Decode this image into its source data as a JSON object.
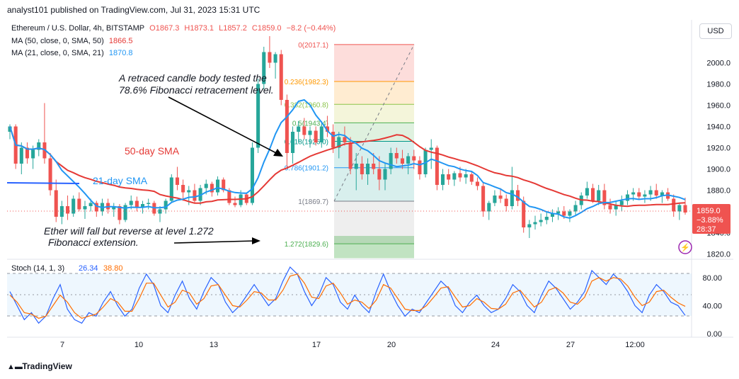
{
  "header": {
    "published": "analyst101 published on TradingView.com, Jul 31, 2023 15:31 UTC",
    "currency_button": "USD",
    "brand": "TradingView"
  },
  "legend": {
    "symbol": "Ethereum / U.S. Dollar, 4h, BITSTAMP",
    "open": "O1867.3",
    "high": "H1873.1",
    "low": "L1857.2",
    "close": "C1859.0",
    "change": "−8.2 (−0.44%)",
    "ma50_label": "MA (50, close, 0, SMA, 50)",
    "ma50_value": "1866.5",
    "ma21_label": "MA (21, close, 0, SMA, 21)",
    "ma21_value": "1870.8",
    "stoch_label": "Stoch (14, 1, 3)",
    "stoch_k": "26.34",
    "stoch_d": "38.80"
  },
  "price_tag": {
    "price": "1859.0",
    "pct": "−3.88%",
    "countdown": "28:37"
  },
  "annotations": {
    "retrace_line1": "A retraced candle body tested the",
    "retrace_line2": "78.6% Fibonacci retracement level.",
    "sma50": "50-day SMA",
    "sma21": "21-day SMA",
    "fall_line1": "Ether will fall but reverse at level 1.272",
    "fall_line2": "Fibonacci extension."
  },
  "colors": {
    "up": "#26a69a",
    "down": "#ef5350",
    "ma50": "#e53935",
    "ma21": "#2196f3",
    "stoch_k": "#2962ff",
    "stoch_d": "#ff6d00"
  },
  "chart_data": [
    {
      "type": "candlestick",
      "title": "Ethereum / U.S. Dollar, 4h, BITSTAMP",
      "x_ticks": [
        "7",
        "10",
        "13",
        "17",
        "20",
        "24",
        "27",
        "12:00"
      ],
      "y_ticks": [
        "2000.0",
        "1980.0",
        "1960.0",
        "1940.0",
        "1920.0",
        "1900.0",
        "1880.0",
        "1840.0",
        "1820.0"
      ],
      "ylim": [
        1815,
        2035
      ],
      "ohlc": [
        [
          1935,
          1942,
          1928,
          1940
        ],
        [
          1940,
          1942,
          1900,
          1905
        ],
        [
          1905,
          1925,
          1895,
          1920
        ],
        [
          1920,
          1925,
          1905,
          1910
        ],
        [
          1910,
          1922,
          1900,
          1918
        ],
        [
          1918,
          1928,
          1912,
          1925
        ],
        [
          1925,
          1962,
          1905,
          1910
        ],
        [
          1910,
          1915,
          1875,
          1880
        ],
        [
          1880,
          1890,
          1850,
          1855
        ],
        [
          1855,
          1870,
          1848,
          1865
        ],
        [
          1865,
          1875,
          1852,
          1858
        ],
        [
          1858,
          1875,
          1855,
          1872
        ],
        [
          1872,
          1878,
          1860,
          1862
        ],
        [
          1862,
          1870,
          1853,
          1865
        ],
        [
          1865,
          1872,
          1860,
          1868
        ],
        [
          1868,
          1870,
          1855,
          1860
        ],
        [
          1860,
          1872,
          1856,
          1868
        ],
        [
          1868,
          1872,
          1858,
          1862
        ],
        [
          1862,
          1868,
          1855,
          1865
        ],
        [
          1865,
          1867,
          1848,
          1852
        ],
        [
          1852,
          1868,
          1850,
          1866
        ],
        [
          1866,
          1875,
          1862,
          1870
        ],
        [
          1870,
          1874,
          1860,
          1864
        ],
        [
          1864,
          1870,
          1858,
          1867
        ],
        [
          1867,
          1872,
          1862,
          1868
        ],
        [
          1868,
          1870,
          1856,
          1858
        ],
        [
          1858,
          1865,
          1850,
          1862
        ],
        [
          1862,
          1872,
          1858,
          1870
        ],
        [
          1870,
          1895,
          1868,
          1892
        ],
        [
          1892,
          1902,
          1880,
          1885
        ],
        [
          1885,
          1890,
          1870,
          1878
        ],
        [
          1878,
          1884,
          1866,
          1880
        ],
        [
          1880,
          1886,
          1868,
          1870
        ],
        [
          1870,
          1885,
          1866,
          1882
        ],
        [
          1882,
          1890,
          1876,
          1886
        ],
        [
          1886,
          1888,
          1874,
          1878
        ],
        [
          1878,
          1893,
          1875,
          1890
        ],
        [
          1890,
          1892,
          1878,
          1880
        ],
        [
          1880,
          1882,
          1866,
          1868
        ],
        [
          1868,
          1874,
          1864,
          1866
        ],
        [
          1866,
          1880,
          1864,
          1876
        ],
        [
          1876,
          1878,
          1866,
          1868
        ],
        [
          1868,
          1925,
          1866,
          1920
        ],
        [
          1920,
          1985,
          1915,
          1980
        ],
        [
          1980,
          2015,
          1975,
          2010
        ],
        [
          2010,
          2025,
          1995,
          2000
        ],
        [
          2000,
          2010,
          1985,
          2008
        ],
        [
          2008,
          2012,
          1960,
          1965
        ],
        [
          1965,
          1970,
          1900,
          1915
        ],
        [
          1915,
          1940,
          1905,
          1935
        ],
        [
          1935,
          1945,
          1925,
          1940
        ],
        [
          1940,
          1948,
          1928,
          1932
        ],
        [
          1932,
          1940,
          1920,
          1936
        ],
        [
          1936,
          1940,
          1922,
          1925
        ],
        [
          1925,
          1945,
          1920,
          1940
        ],
        [
          1940,
          1950,
          1930,
          1935
        ],
        [
          1935,
          1942,
          1915,
          1920
        ],
        [
          1920,
          1935,
          1910,
          1930
        ],
        [
          1930,
          1940,
          1922,
          1925
        ],
        [
          1925,
          1930,
          1895,
          1900
        ],
        [
          1900,
          1915,
          1880,
          1905
        ],
        [
          1905,
          1912,
          1890,
          1895
        ],
        [
          1895,
          1910,
          1885,
          1905
        ],
        [
          1905,
          1915,
          1895,
          1900
        ],
        [
          1900,
          1912,
          1880,
          1890
        ],
        [
          1890,
          1905,
          1880,
          1900
        ],
        [
          1900,
          1920,
          1895,
          1915
        ],
        [
          1915,
          1920,
          1905,
          1910
        ],
        [
          1910,
          1918,
          1900,
          1905
        ],
        [
          1905,
          1915,
          1895,
          1912
        ],
        [
          1912,
          1918,
          1900,
          1908
        ],
        [
          1908,
          1912,
          1890,
          1895
        ],
        [
          1895,
          1920,
          1892,
          1918
        ],
        [
          1918,
          1928,
          1900,
          1920
        ],
        [
          1920,
          1922,
          1880,
          1885
        ],
        [
          1885,
          1900,
          1880,
          1895
        ],
        [
          1895,
          1900,
          1885,
          1890
        ],
        [
          1890,
          1898,
          1884,
          1896
        ],
        [
          1896,
          1902,
          1888,
          1892
        ],
        [
          1892,
          1900,
          1886,
          1895
        ],
        [
          1895,
          1898,
          1885,
          1888
        ],
        [
          1888,
          1892,
          1880,
          1884
        ],
        [
          1884,
          1888,
          1855,
          1860
        ],
        [
          1860,
          1870,
          1852,
          1868
        ],
        [
          1868,
          1880,
          1865,
          1875
        ],
        [
          1875,
          1882,
          1868,
          1872
        ],
        [
          1872,
          1876,
          1860,
          1865
        ],
        [
          1865,
          1902,
          1862,
          1880
        ],
        [
          1880,
          1885,
          1865,
          1870
        ],
        [
          1870,
          1874,
          1840,
          1845
        ],
        [
          1845,
          1852,
          1835,
          1848
        ],
        [
          1848,
          1856,
          1843,
          1850
        ],
        [
          1850,
          1858,
          1846,
          1852
        ],
        [
          1852,
          1860,
          1848,
          1855
        ],
        [
          1855,
          1862,
          1850,
          1858
        ],
        [
          1858,
          1864,
          1852,
          1860
        ],
        [
          1860,
          1865,
          1853,
          1856
        ],
        [
          1856,
          1862,
          1850,
          1860
        ],
        [
          1860,
          1870,
          1856,
          1866
        ],
        [
          1866,
          1878,
          1862,
          1875
        ],
        [
          1875,
          1888,
          1872,
          1882
        ],
        [
          1882,
          1886,
          1868,
          1870
        ],
        [
          1870,
          1885,
          1866,
          1880
        ],
        [
          1880,
          1886,
          1862,
          1866
        ],
        [
          1866,
          1872,
          1858,
          1862
        ],
        [
          1862,
          1870,
          1856,
          1866
        ],
        [
          1866,
          1875,
          1860,
          1870
        ],
        [
          1870,
          1880,
          1866,
          1876
        ],
        [
          1876,
          1882,
          1870,
          1878
        ],
        [
          1878,
          1882,
          1872,
          1874
        ],
        [
          1874,
          1880,
          1868,
          1876
        ],
        [
          1876,
          1884,
          1870,
          1880
        ],
        [
          1880,
          1886,
          1872,
          1875
        ],
        [
          1875,
          1880,
          1868,
          1878
        ],
        [
          1878,
          1882,
          1870,
          1872
        ],
        [
          1872,
          1876,
          1855,
          1860
        ],
        [
          1860,
          1868,
          1852,
          1866
        ],
        [
          1866,
          1873,
          1857,
          1859
        ]
      ]
    },
    {
      "type": "line",
      "title": "Fibonacci retracement",
      "levels": [
        {
          "ratio": "0",
          "price": 2017.1
        },
        {
          "ratio": "0.236",
          "price": 1982.3
        },
        {
          "ratio": "0.382",
          "price": 1960.8
        },
        {
          "ratio": "0.5",
          "price": 1943.4
        },
        {
          "ratio": "0.618",
          "price": 1926.0
        },
        {
          "ratio": "0.786",
          "price": 1901.2
        },
        {
          "ratio": "1",
          "price": 1869.7
        },
        {
          "ratio": "1.272",
          "price": 1829.6
        }
      ]
    },
    {
      "type": "line",
      "title": "Stoch (14, 1, 3)",
      "y_ticks": [
        "80.00",
        "40.00",
        "0.00"
      ],
      "ylim": [
        -5,
        100
      ],
      "series": [
        {
          "name": "26.34",
          "values": [
            60,
            40,
            20,
            30,
            15,
            25,
            50,
            70,
            35,
            20,
            15,
            30,
            25,
            45,
            60,
            40,
            25,
            35,
            65,
            85,
            70,
            40,
            30,
            55,
            75,
            50,
            35,
            60,
            80,
            70,
            45,
            30,
            40,
            55,
            70,
            55,
            40,
            50,
            75,
            95,
            85,
            60,
            40,
            55,
            80,
            70,
            45,
            35,
            55,
            40,
            30,
            60,
            85,
            60,
            40,
            25,
            35,
            30,
            45,
            60,
            75,
            65,
            40,
            30,
            45,
            55,
            40,
            30,
            35,
            50,
            70,
            60,
            40,
            30,
            55,
            75,
            65,
            50,
            35,
            45,
            60,
            90,
            80,
            70,
            85,
            75,
            60,
            40,
            30,
            55,
            70,
            60,
            45,
            40,
            26
          ]
        },
        {
          "name": "38.80",
          "values": [
            55,
            45,
            30,
            28,
            22,
            25,
            40,
            55,
            45,
            30,
            22,
            25,
            28,
            38,
            50,
            45,
            32,
            32,
            50,
            72,
            72,
            55,
            38,
            45,
            62,
            58,
            42,
            50,
            68,
            70,
            55,
            40,
            38,
            48,
            60,
            58,
            48,
            48,
            62,
            82,
            85,
            72,
            52,
            50,
            68,
            72,
            58,
            42,
            48,
            45,
            36,
            48,
            70,
            65,
            50,
            35,
            33,
            33,
            40,
            52,
            65,
            67,
            52,
            38,
            40,
            50,
            45,
            36,
            35,
            42,
            58,
            62,
            50,
            38,
            45,
            62,
            66,
            58,
            45,
            42,
            52,
            75,
            80,
            75,
            80,
            78,
            68,
            52,
            40,
            45,
            60,
            62,
            52,
            44,
            39
          ]
        }
      ]
    }
  ]
}
